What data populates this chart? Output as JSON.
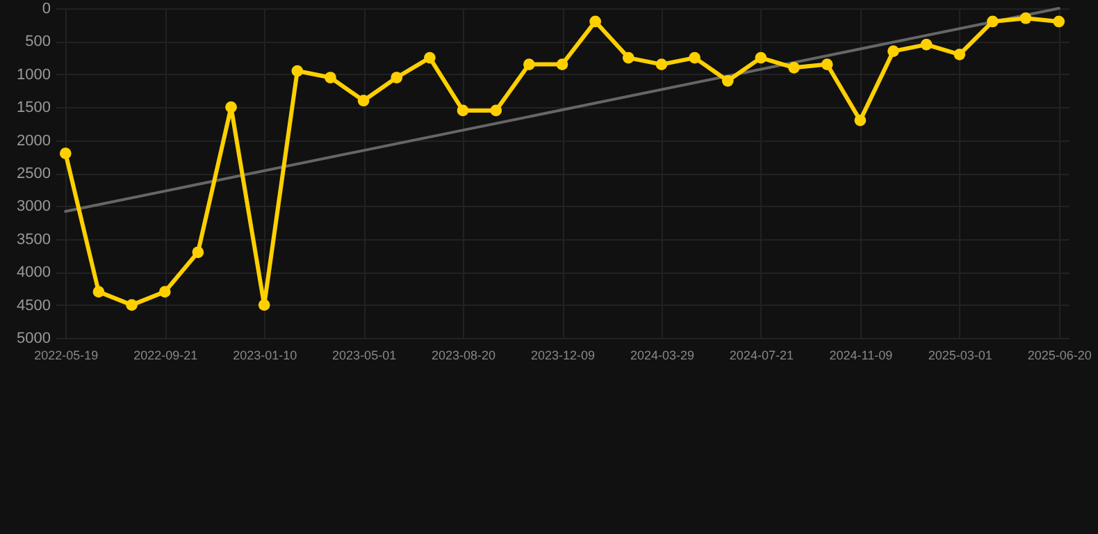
{
  "chart_data": {
    "type": "line",
    "categories": [
      "2022-05-19",
      null,
      null,
      "2022-09-21",
      null,
      null,
      "2023-01-10",
      null,
      null,
      "2023-05-01",
      null,
      null,
      "2023-08-20",
      null,
      null,
      "2023-12-09",
      null,
      null,
      "2024-03-29",
      null,
      null,
      "2024-07-21",
      null,
      null,
      "2024-11-09",
      null,
      null,
      "2025-03-01",
      null,
      null,
      "2025-06-20"
    ],
    "series": [
      {
        "color": "#ffd000",
        "marker": "circle",
        "values": [
          2200,
          4300,
          4500,
          4300,
          3700,
          1500,
          4500,
          950,
          1050,
          1400,
          1050,
          750,
          1550,
          1550,
          850,
          850,
          200,
          750,
          850,
          750,
          1100,
          750,
          900,
          850,
          1700,
          650,
          550,
          700,
          200,
          150,
          200
        ]
      },
      {
        "type": "line",
        "color": "#666666",
        "marker": "none",
        "values": [
          3080,
          null,
          null,
          null,
          null,
          null,
          null,
          null,
          null,
          null,
          null,
          null,
          null,
          null,
          null,
          null,
          null,
          null,
          null,
          null,
          null,
          null,
          null,
          null,
          null,
          null,
          null,
          null,
          null,
          null,
          0
        ]
      }
    ],
    "ylim": [
      5000,
      0
    ],
    "yticks": [
      0,
      500,
      1000,
      1500,
      2000,
      2500,
      3000,
      3500,
      4000,
      4500,
      5000
    ],
    "grid": true
  }
}
